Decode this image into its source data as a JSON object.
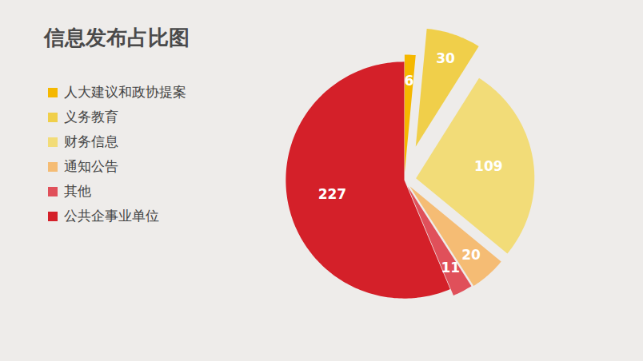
{
  "chart_data": {
    "type": "pie",
    "title": "信息发布占比图",
    "categories": [
      "人大建议和政协提案",
      "义务教育",
      "财务信息",
      "通知公告",
      "其他",
      "公共企事业单位"
    ],
    "values": [
      6,
      30,
      109,
      20,
      11,
      227
    ],
    "colors": [
      "#f5b800",
      "#f0cf4a",
      "#f2dc78",
      "#f5bc74",
      "#e0505a",
      "#d42029"
    ],
    "legend": "top-left",
    "data_labels": true
  }
}
